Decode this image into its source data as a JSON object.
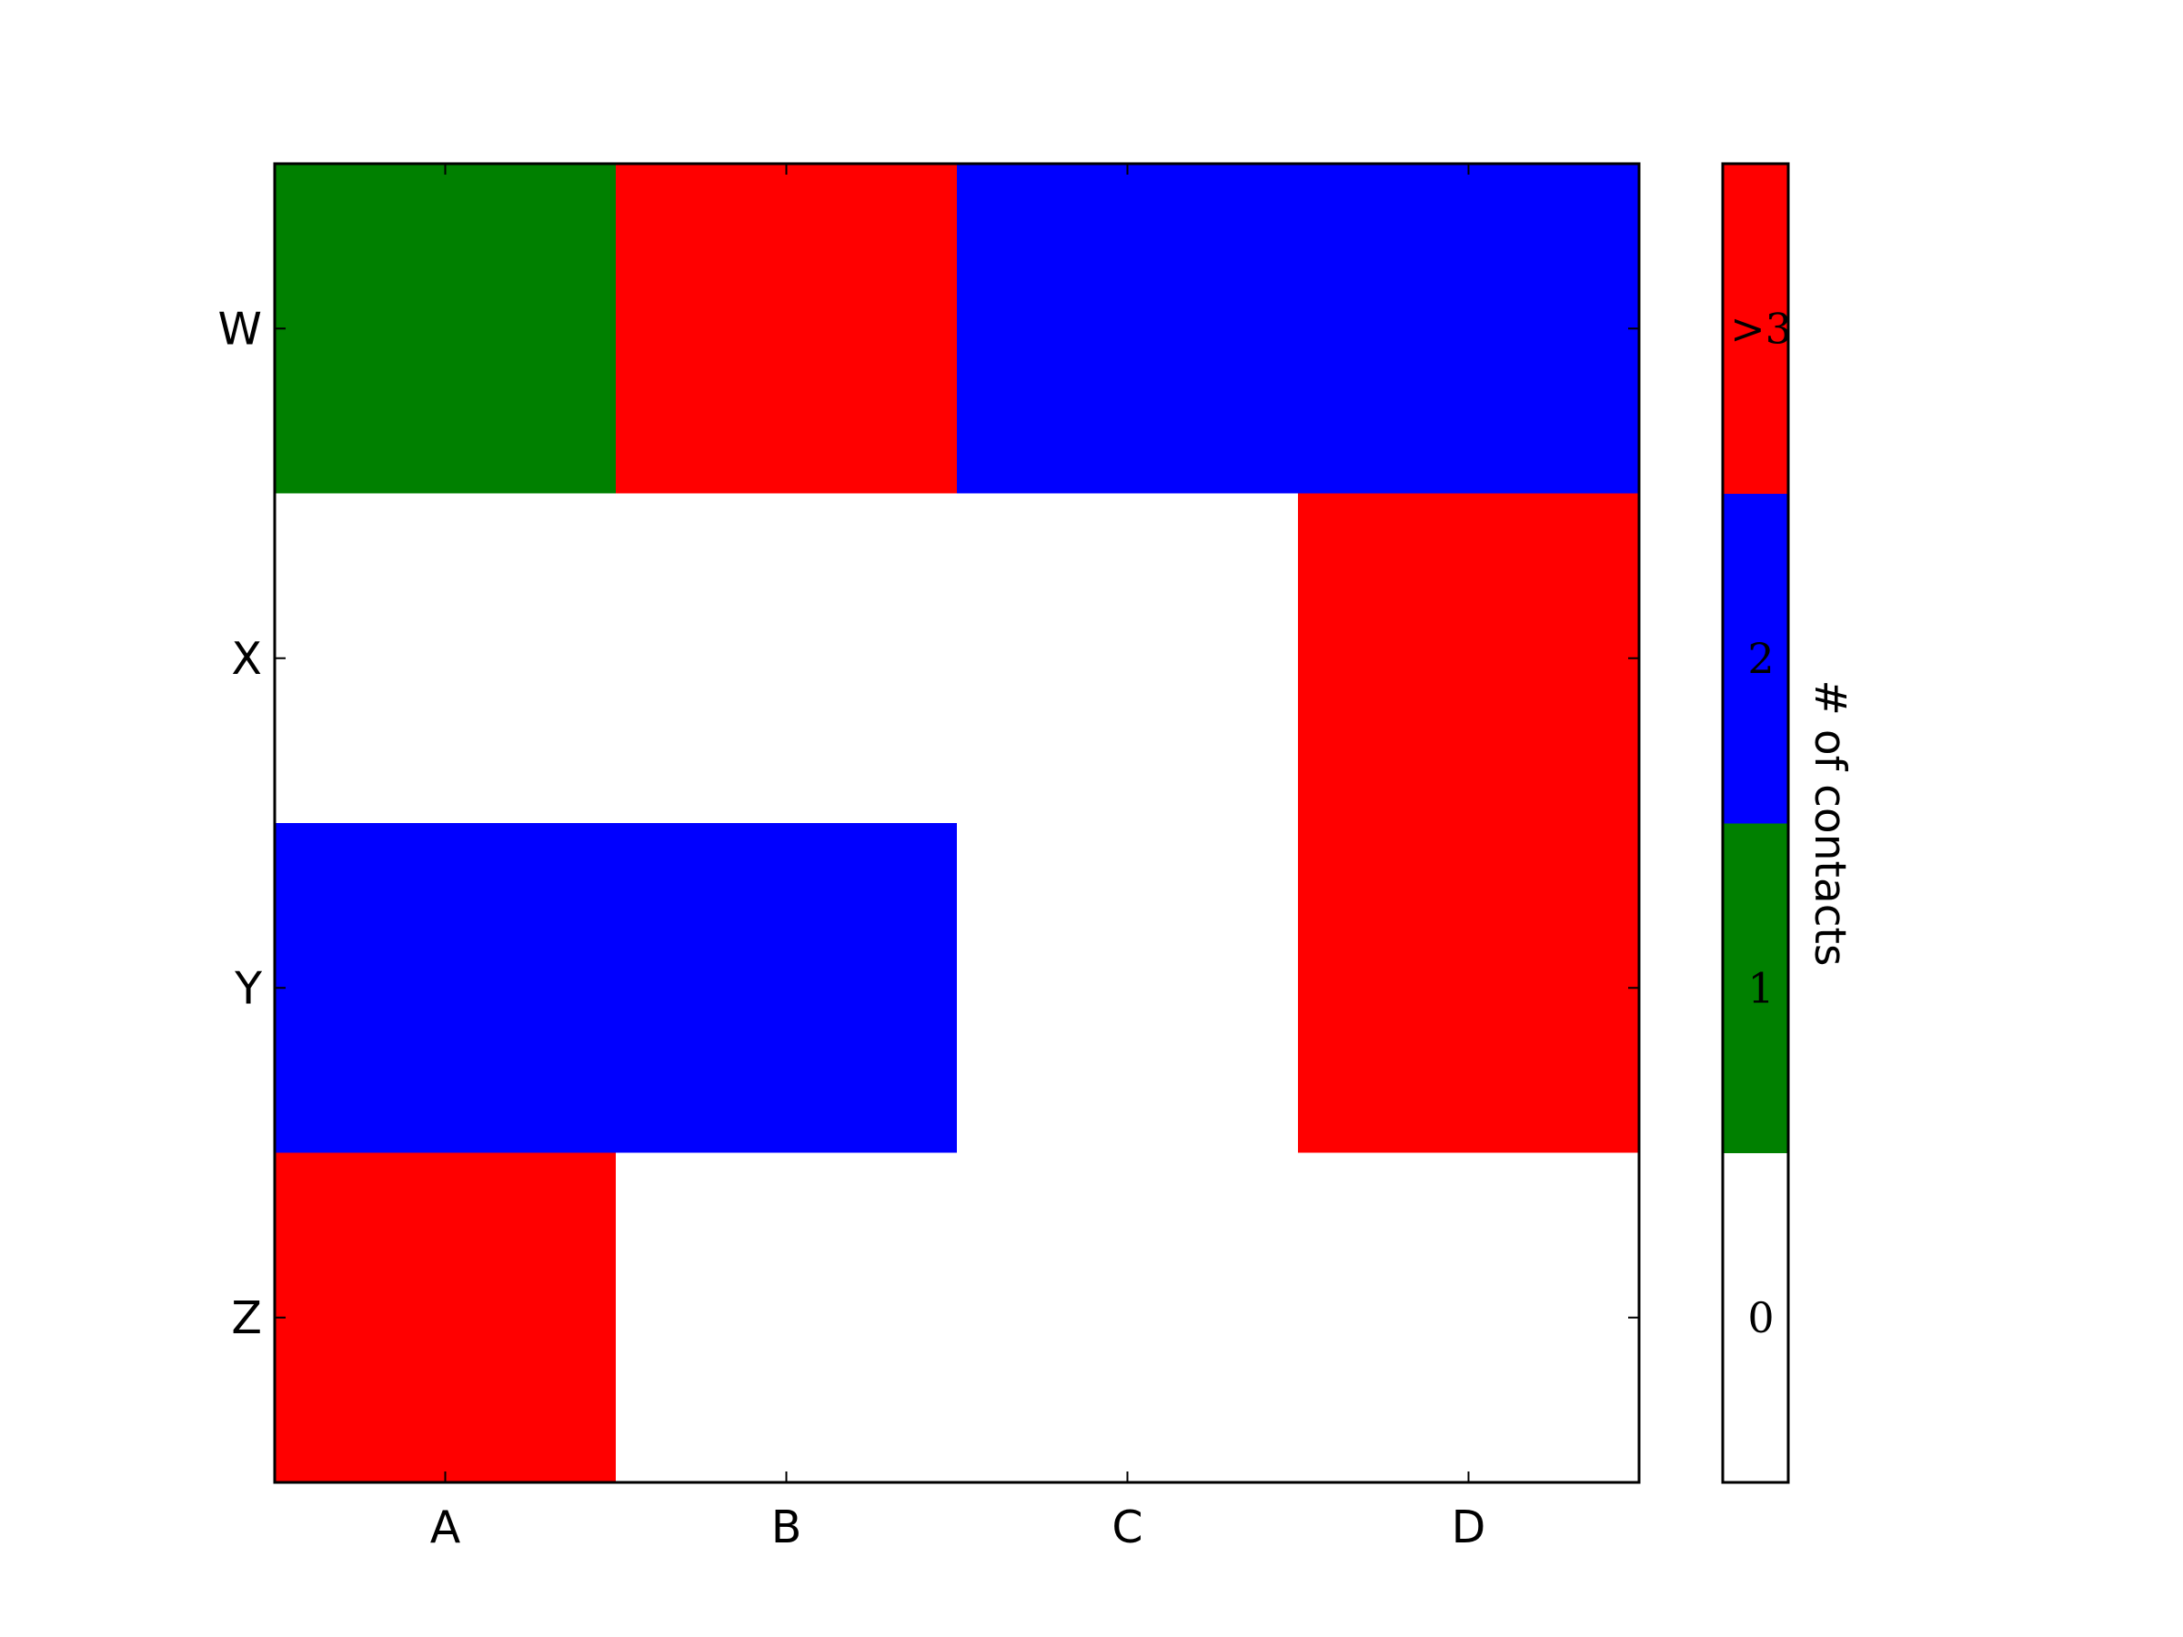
{
  "chart_data": {
    "type": "heatmap",
    "x_categories": [
      "A",
      "B",
      "C",
      "D"
    ],
    "y_categories": [
      "W",
      "X",
      "Y",
      "Z"
    ],
    "values": [
      [
        1,
        3,
        2,
        2
      ],
      [
        0,
        0,
        0,
        3
      ],
      [
        2,
        2,
        0,
        3
      ],
      [
        3,
        0,
        0,
        0
      ]
    ],
    "colorbar": {
      "levels": [
        0,
        1,
        2,
        3
      ],
      "labels": [
        "0",
        "1",
        "2",
        ">3"
      ],
      "colors": [
        "#ffffff",
        "#008000",
        "#0000ff",
        "#ff0000"
      ],
      "label": "# of contacts"
    },
    "grid": false
  }
}
